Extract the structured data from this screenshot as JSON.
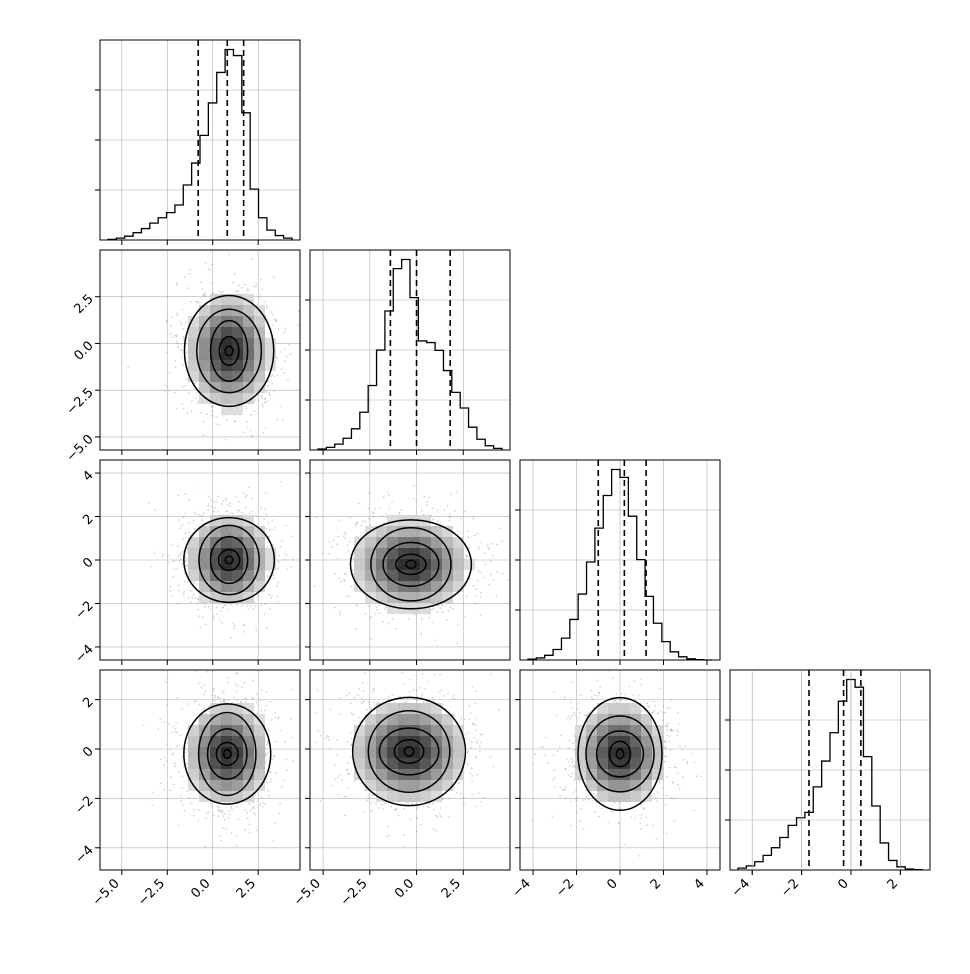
{
  "chart_data": {
    "type": "corner",
    "grid": true,
    "colors": {
      "line": "#000000",
      "grid": "#b0b0b0",
      "points": "#888888"
    },
    "parameters": [
      {
        "range": [
          -6.2,
          4.8
        ],
        "ticks": [
          -5.0,
          -2.5,
          0.0,
          2.5
        ],
        "tick_labels": [
          "−5.0",
          "−2.5",
          "0.0",
          "2.5"
        ],
        "quantiles": [
          -0.8,
          0.8,
          1.7
        ],
        "mean": 0.8,
        "sd": 1.1,
        "hist_counts": [
          0.2,
          0.6,
          1.2,
          2.3,
          3.6,
          5.3,
          7.0,
          8.6,
          11.0,
          17.3,
          24.2,
          32.9,
          43.1,
          52.7,
          59.9,
          58.0,
          40.0,
          16.0,
          7.0,
          3.1,
          1.4,
          0.6
        ]
      },
      {
        "range": [
          -5.7,
          5.0
        ],
        "ticks": [
          -5.0,
          -2.5,
          0.0,
          2.5
        ],
        "tick_labels": [
          "−5.0",
          "−2.5",
          "0.0",
          "2.5"
        ],
        "quantiles": [
          -1.4,
          0.0,
          1.8
        ],
        "mean": 0.0,
        "sd": 1.5,
        "hist_counts": [
          0.3,
          0.8,
          1.8,
          3.6,
          6.5,
          11.6,
          19.8,
          30.7,
          42.7,
          55.7,
          58.5,
          46.8,
          33.5,
          33.0,
          30.6,
          24.4,
          17.7,
          12.9,
          7.0,
          3.3,
          1.3,
          0.5
        ]
      },
      {
        "range": [
          -4.6,
          4.6
        ],
        "ticks": [
          -4,
          -2,
          0,
          2,
          4
        ],
        "tick_labels": [
          "−4",
          "−2",
          "0",
          "2",
          "4"
        ],
        "quantiles": [
          -1.0,
          0.2,
          1.2
        ],
        "mean": 0.2,
        "sd": 1.0,
        "hist_counts": [
          0.3,
          0.7,
          1.6,
          3.6,
          7.5,
          13.9,
          22.6,
          33.6,
          45.2,
          56.4,
          65.3,
          62.6,
          49.3,
          34.4,
          21.8,
          12.6,
          6.3,
          2.8,
          1.1,
          0.4,
          0.1,
          0.0
        ]
      },
      {
        "range": [
          -4.9,
          3.2
        ],
        "ticks": [
          -4,
          -2,
          0,
          2
        ],
        "tick_labels": [
          "−4",
          "−2",
          "0",
          "2"
        ],
        "quantiles": [
          -1.7,
          -0.3,
          0.4
        ],
        "mean": -0.3,
        "sd": 1.0,
        "hist_counts": [
          0.6,
          1.3,
          2.6,
          4.6,
          7.0,
          10.2,
          14.0,
          16.4,
          18.1,
          26.1,
          34.2,
          43.1,
          53.0,
          59.8,
          57.4,
          35.6,
          20.1,
          8.5,
          3.0,
          1.0,
          0.3,
          0.1
        ]
      }
    ],
    "pair_centers": {
      "1_0": [
        0.9,
        -0.4
      ],
      "2_0": [
        0.9,
        0.0
      ],
      "2_1": [
        -0.3,
        -0.2
      ],
      "3_0": [
        0.8,
        -0.2
      ],
      "3_1": [
        -0.4,
        -0.1
      ],
      "3_2": [
        0.0,
        -0.2
      ]
    }
  }
}
